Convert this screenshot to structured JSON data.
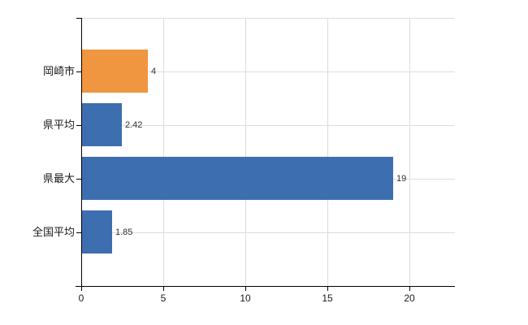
{
  "chart_data": {
    "type": "bar",
    "orientation": "horizontal",
    "title": "",
    "categories": [
      "岡崎市",
      "県平均",
      "県最大",
      "全国平均"
    ],
    "values": [
      4,
      2.42,
      19,
      1.85
    ],
    "value_labels": [
      "4",
      "2.42",
      "19",
      "1.85"
    ],
    "bar_colors": [
      "#F09540",
      "#3D6EB0",
      "#3D6EB0",
      "#3D6EB0"
    ],
    "highlight_color": "#F09540",
    "default_color": "#3D6EB0",
    "xlabel": "",
    "ylabel": "",
    "xlim": [
      0,
      22.8
    ],
    "x_ticks": [
      "0",
      "5",
      "10",
      "15",
      "20"
    ],
    "x_tick_values": [
      0,
      5,
      10,
      15,
      20
    ],
    "grid": true,
    "legend": false,
    "gridline_color": "#DCDCDC",
    "axis_color": "#000000",
    "background_color": "#FFFFFF"
  }
}
